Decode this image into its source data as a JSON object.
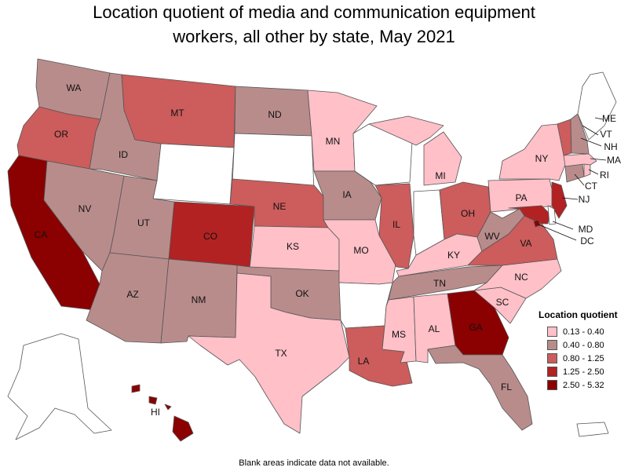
{
  "title_lines": [
    "Location quotient of media and communication equipment",
    "workers, all other by state, May 2021"
  ],
  "legend": {
    "title": "Location quotient",
    "items": [
      {
        "label": "0.13 - 0.40",
        "color": "#ffc0c8"
      },
      {
        "label": "0.40 - 0.80",
        "color": "#b98c8c"
      },
      {
        "label": "0.80 - 1.25",
        "color": "#cd5c5c"
      },
      {
        "label": "1.25 - 2.50",
        "color": "#b22222"
      },
      {
        "label": "2.50 - 5.32",
        "color": "#8b0000"
      }
    ]
  },
  "no_data_color": "#ffffff",
  "footnote": "Blank areas indicate data not available.",
  "states": {
    "WA": {
      "label": "WA",
      "class": 1
    },
    "OR": {
      "label": "OR",
      "class": 2
    },
    "CA": {
      "label": "CA",
      "class": 4
    },
    "ID": {
      "label": "ID",
      "class": 1
    },
    "NV": {
      "label": "NV",
      "class": 1
    },
    "MT": {
      "label": "MT",
      "class": 2
    },
    "WY": {
      "label": "",
      "class": null
    },
    "UT": {
      "label": "UT",
      "class": 1
    },
    "AZ": {
      "label": "AZ",
      "class": 1
    },
    "CO": {
      "label": "CO",
      "class": 3
    },
    "NM": {
      "label": "NM",
      "class": 1
    },
    "ND": {
      "label": "ND",
      "class": 1
    },
    "SD": {
      "label": "",
      "class": null
    },
    "NE": {
      "label": "NE",
      "class": 2
    },
    "KS": {
      "label": "KS",
      "class": 0
    },
    "OK": {
      "label": "OK",
      "class": 1
    },
    "TX": {
      "label": "TX",
      "class": 0
    },
    "MN": {
      "label": "MN",
      "class": 0
    },
    "IA": {
      "label": "IA",
      "class": 1
    },
    "MO": {
      "label": "MO",
      "class": 0
    },
    "AR": {
      "label": "",
      "class": null
    },
    "LA": {
      "label": "LA",
      "class": 2
    },
    "WI": {
      "label": "",
      "class": null
    },
    "IL": {
      "label": "IL",
      "class": 2
    },
    "MI": {
      "label": "MI",
      "class": 0
    },
    "IN": {
      "label": "",
      "class": null
    },
    "OH": {
      "label": "OH",
      "class": 2
    },
    "KY": {
      "label": "KY",
      "class": 0
    },
    "TN": {
      "label": "TN",
      "class": 1
    },
    "MS": {
      "label": "MS",
      "class": 0
    },
    "AL": {
      "label": "AL",
      "class": 0
    },
    "GA": {
      "label": "GA",
      "class": 4
    },
    "FL": {
      "label": "FL",
      "class": 1
    },
    "SC": {
      "label": "SC",
      "class": 0
    },
    "NC": {
      "label": "NC",
      "class": 0
    },
    "VA": {
      "label": "VA",
      "class": 2
    },
    "WV": {
      "label": "WV",
      "class": 1
    },
    "PA": {
      "label": "PA",
      "class": 0
    },
    "NY": {
      "label": "NY",
      "class": 0
    },
    "NJ": {
      "label": "NJ",
      "class": 3
    },
    "MD": {
      "label": "MD",
      "class": 3
    },
    "DE": {
      "label": "",
      "class": null
    },
    "DC": {
      "label": "DC",
      "class": 4
    },
    "CT": {
      "label": "CT",
      "class": 1
    },
    "RI": {
      "label": "RI",
      "class": 0
    },
    "MA": {
      "label": "MA",
      "class": 0
    },
    "VT": {
      "label": "VT",
      "class": 2
    },
    "NH": {
      "label": "NH",
      "class": 1
    },
    "ME": {
      "label": "ME",
      "class": null
    },
    "AK": {
      "label": "",
      "class": null
    },
    "HI": {
      "label": "HI",
      "class": 4
    },
    "PR": {
      "label": "",
      "class": null
    }
  }
}
